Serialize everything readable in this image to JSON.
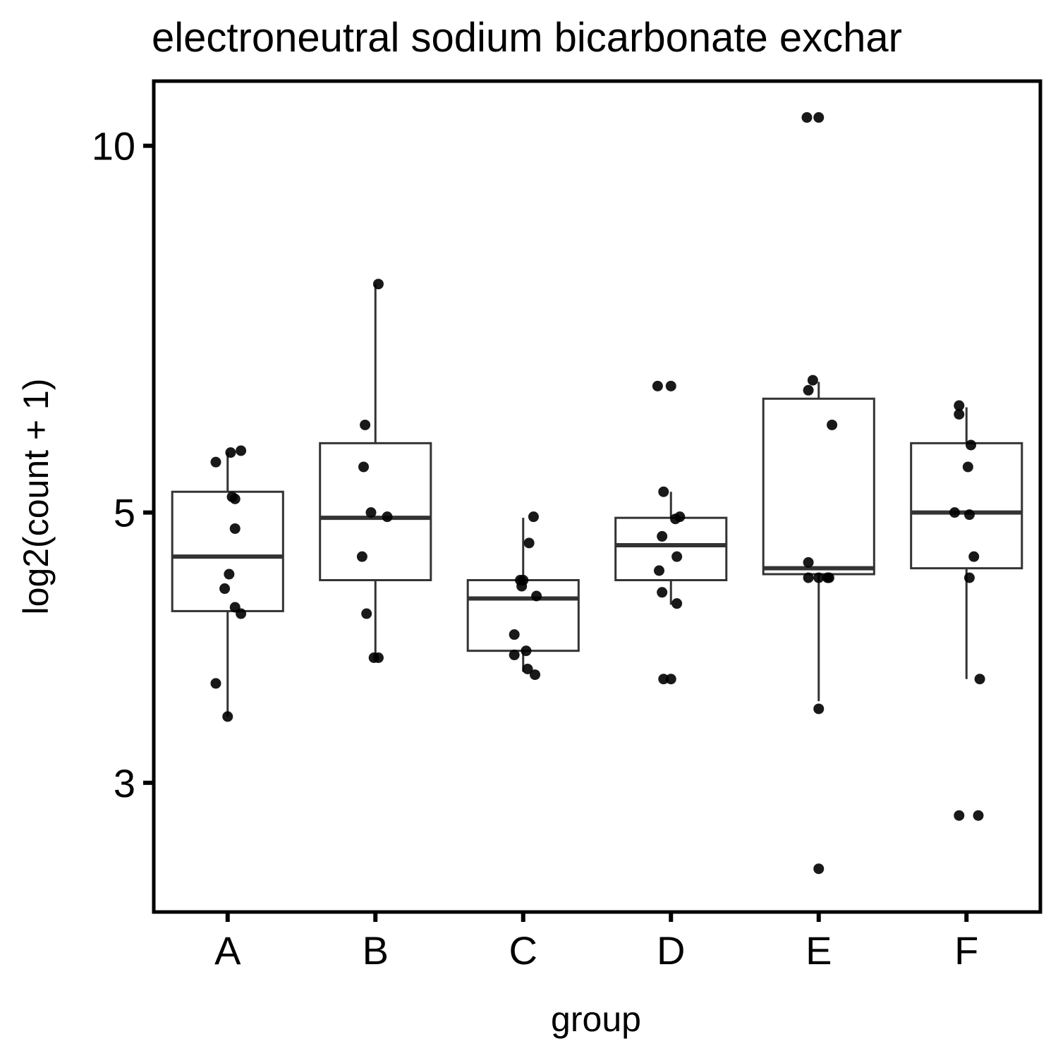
{
  "chart_data": {
    "type": "box",
    "title": "electroneutral sodium bicarbonate exchar",
    "xlabel": "group",
    "ylabel": "log2(count + 1)",
    "y_scale": "log",
    "ylim": [
      2.35,
      11.3
    ],
    "y_ticks": [
      3,
      5,
      10
    ],
    "y_tick_labels": [
      "3",
      "5",
      "10"
    ],
    "categories": [
      "A",
      "B",
      "C",
      "D",
      "E",
      "F"
    ],
    "boxes": [
      {
        "group": "A",
        "whisker_low": 3.4,
        "q1": 4.15,
        "median": 4.6,
        "q3": 5.2,
        "whisker_high": 5.6
      },
      {
        "group": "B",
        "whisker_low": 3.8,
        "q1": 4.4,
        "median": 4.95,
        "q3": 5.7,
        "whisker_high": 7.7
      },
      {
        "group": "C",
        "whisker_low": 3.7,
        "q1": 3.85,
        "median": 4.25,
        "q3": 4.4,
        "whisker_high": 4.95
      },
      {
        "group": "D",
        "whisker_low": 4.2,
        "q1": 4.4,
        "median": 4.7,
        "q3": 4.95,
        "whisker_high": 5.2
      },
      {
        "group": "E",
        "whisker_low": 3.5,
        "q1": 4.45,
        "median": 4.5,
        "q3": 6.2,
        "whisker_high": 6.4
      },
      {
        "group": "F",
        "whisker_low": 3.65,
        "q1": 4.5,
        "median": 5.0,
        "q3": 5.7,
        "whisker_high": 6.1
      }
    ],
    "points": [
      {
        "group": "A",
        "jitter": -0.08,
        "y": 5.5
      },
      {
        "group": "A",
        "jitter": 0.02,
        "y": 5.6
      },
      {
        "group": "A",
        "jitter": 0.09,
        "y": 5.62
      },
      {
        "group": "A",
        "jitter": 0.03,
        "y": 5.15
      },
      {
        "group": "A",
        "jitter": 0.05,
        "y": 5.13
      },
      {
        "group": "A",
        "jitter": 0.05,
        "y": 4.85
      },
      {
        "group": "A",
        "jitter": 0.01,
        "y": 4.45
      },
      {
        "group": "A",
        "jitter": -0.02,
        "y": 4.33
      },
      {
        "group": "A",
        "jitter": 0.05,
        "y": 4.18
      },
      {
        "group": "A",
        "jitter": 0.09,
        "y": 4.13
      },
      {
        "group": "A",
        "jitter": -0.08,
        "y": 3.62
      },
      {
        "group": "A",
        "jitter": 0.0,
        "y": 3.4
      },
      {
        "group": "B",
        "jitter": 0.02,
        "y": 7.7
      },
      {
        "group": "B",
        "jitter": -0.07,
        "y": 5.9
      },
      {
        "group": "B",
        "jitter": -0.08,
        "y": 5.45
      },
      {
        "group": "B",
        "jitter": -0.03,
        "y": 5.0
      },
      {
        "group": "B",
        "jitter": 0.08,
        "y": 4.96
      },
      {
        "group": "B",
        "jitter": -0.09,
        "y": 4.6
      },
      {
        "group": "B",
        "jitter": -0.06,
        "y": 4.13
      },
      {
        "group": "B",
        "jitter": -0.01,
        "y": 3.8
      },
      {
        "group": "B",
        "jitter": 0.02,
        "y": 3.8
      },
      {
        "group": "C",
        "jitter": 0.07,
        "y": 4.96
      },
      {
        "group": "C",
        "jitter": 0.04,
        "y": 4.72
      },
      {
        "group": "C",
        "jitter": -0.02,
        "y": 4.4
      },
      {
        "group": "C",
        "jitter": 0.0,
        "y": 4.4
      },
      {
        "group": "C",
        "jitter": -0.01,
        "y": 4.35
      },
      {
        "group": "C",
        "jitter": 0.09,
        "y": 4.27
      },
      {
        "group": "C",
        "jitter": -0.06,
        "y": 3.97
      },
      {
        "group": "C",
        "jitter": 0.02,
        "y": 3.85
      },
      {
        "group": "C",
        "jitter": -0.06,
        "y": 3.82
      },
      {
        "group": "C",
        "jitter": 0.03,
        "y": 3.72
      },
      {
        "group": "C",
        "jitter": 0.08,
        "y": 3.68
      },
      {
        "group": "D",
        "jitter": -0.09,
        "y": 6.35
      },
      {
        "group": "D",
        "jitter": 0.0,
        "y": 6.35
      },
      {
        "group": "D",
        "jitter": -0.05,
        "y": 5.2
      },
      {
        "group": "D",
        "jitter": 0.06,
        "y": 4.96
      },
      {
        "group": "D",
        "jitter": 0.03,
        "y": 4.94
      },
      {
        "group": "D",
        "jitter": -0.06,
        "y": 4.78
      },
      {
        "group": "D",
        "jitter": 0.04,
        "y": 4.6
      },
      {
        "group": "D",
        "jitter": -0.08,
        "y": 4.48
      },
      {
        "group": "D",
        "jitter": -0.06,
        "y": 4.3
      },
      {
        "group": "D",
        "jitter": 0.04,
        "y": 4.21
      },
      {
        "group": "D",
        "jitter": -0.05,
        "y": 3.65
      },
      {
        "group": "D",
        "jitter": 0.0,
        "y": 3.65
      },
      {
        "group": "E",
        "jitter": -0.08,
        "y": 10.55
      },
      {
        "group": "E",
        "jitter": 0.0,
        "y": 10.55
      },
      {
        "group": "E",
        "jitter": -0.04,
        "y": 6.42
      },
      {
        "group": "E",
        "jitter": -0.07,
        "y": 6.3
      },
      {
        "group": "E",
        "jitter": 0.09,
        "y": 5.9
      },
      {
        "group": "E",
        "jitter": -0.07,
        "y": 4.55
      },
      {
        "group": "E",
        "jitter": -0.07,
        "y": 4.42
      },
      {
        "group": "E",
        "jitter": 0.06,
        "y": 4.42
      },
      {
        "group": "E",
        "jitter": 0.0,
        "y": 4.42
      },
      {
        "group": "E",
        "jitter": 0.07,
        "y": 4.42
      },
      {
        "group": "E",
        "jitter": 0.0,
        "y": 3.45
      },
      {
        "group": "E",
        "jitter": 0.0,
        "y": 2.55
      },
      {
        "group": "F",
        "jitter": -0.05,
        "y": 6.12
      },
      {
        "group": "F",
        "jitter": -0.05,
        "y": 6.02
      },
      {
        "group": "F",
        "jitter": 0.03,
        "y": 5.68
      },
      {
        "group": "F",
        "jitter": 0.01,
        "y": 5.45
      },
      {
        "group": "F",
        "jitter": -0.08,
        "y": 5.0
      },
      {
        "group": "F",
        "jitter": 0.02,
        "y": 4.98
      },
      {
        "group": "F",
        "jitter": 0.05,
        "y": 4.6
      },
      {
        "group": "F",
        "jitter": 0.02,
        "y": 4.42
      },
      {
        "group": "F",
        "jitter": 0.09,
        "y": 3.65
      },
      {
        "group": "F",
        "jitter": -0.05,
        "y": 2.82
      },
      {
        "group": "F",
        "jitter": 0.08,
        "y": 2.82
      }
    ]
  }
}
